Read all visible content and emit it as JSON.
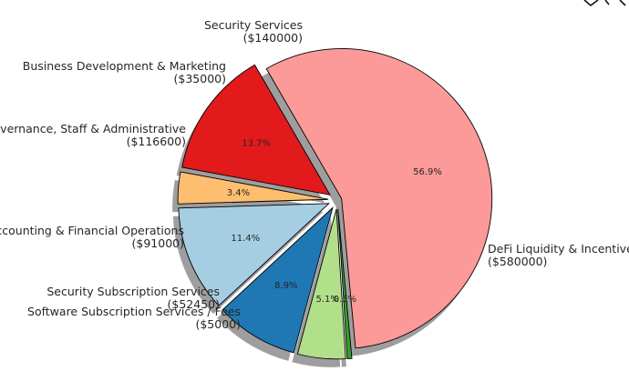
{
  "chart_data": {
    "type": "pie",
    "startangle_deg": 120,
    "shadow": true,
    "slices": [
      {
        "name": "Security Services",
        "value": 140000,
        "value_label": "($140000)",
        "pct_label": "13.7%",
        "color": "#e31a1c",
        "explode": 0.06
      },
      {
        "name": "Business Development & Marketing",
        "value": 35000,
        "value_label": "($35000)",
        "pct_label": "3.4%",
        "color": "#fdbf6f",
        "explode": 0.06
      },
      {
        "name": "Governance, Staff & Administrative",
        "value": 116600,
        "value_label": "($116600)",
        "pct_label": "11.4%",
        "color": "#a6cee3",
        "explode": 0.06
      },
      {
        "name": "Accounting & Financial Operations",
        "value": 91000,
        "value_label": "($91000)",
        "pct_label": "8.9%",
        "color": "#1f78b4",
        "explode": 0.06
      },
      {
        "name": "Security Subscription Services",
        "value": 52450,
        "value_label": "($52450)",
        "pct_label": "5.1%",
        "color": "#b2df8a",
        "explode": 0.06
      },
      {
        "name": "Software Subscription Services / Fees",
        "value": 5000,
        "value_label": "($5000)",
        "pct_label": "0.5%",
        "color": "#33a02c",
        "explode": 0.06
      },
      {
        "name": "DeFi Liquidity & Incentives",
        "value": 580000,
        "value_label": "($580000)",
        "pct_label": "56.9%",
        "color": "#fb9a99",
        "explode": 0.03
      }
    ]
  }
}
